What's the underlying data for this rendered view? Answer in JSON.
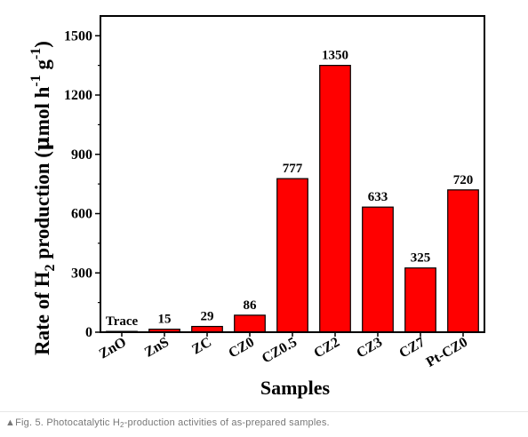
{
  "chart_data": {
    "type": "bar",
    "categories": [
      "ZnO",
      "ZnS",
      "ZC",
      "CZ0",
      "CZ0.5",
      "CZ2",
      "CZ3",
      "CZ7",
      "Pt-CZ0"
    ],
    "values": [
      4,
      15,
      29,
      86,
      777,
      1350,
      633,
      325,
      720
    ],
    "data_labels": [
      "Trace",
      "15",
      "29",
      "86",
      "777",
      "1350",
      "633",
      "325",
      "720"
    ],
    "xlabel": "Samples",
    "ylabel": {
      "prefix": "Rate of H",
      "sub": "2",
      "middle": " production (",
      "mu": "μ",
      "unit": "mol h",
      "sup1": "-1",
      "space": " ",
      "g": "g",
      "sup2": "-1",
      "close": ")"
    },
    "ylim": [
      0,
      1600
    ],
    "yticks": [
      0,
      300,
      600,
      900,
      1200,
      1500
    ],
    "bar_color": "#ff0000",
    "grid": false
  },
  "caption": {
    "triangle": "▲",
    "prefix": "Fig. 5. Photocatalytic H",
    "sub": "2",
    "suffix": "-production activities of as-prepared samples."
  }
}
